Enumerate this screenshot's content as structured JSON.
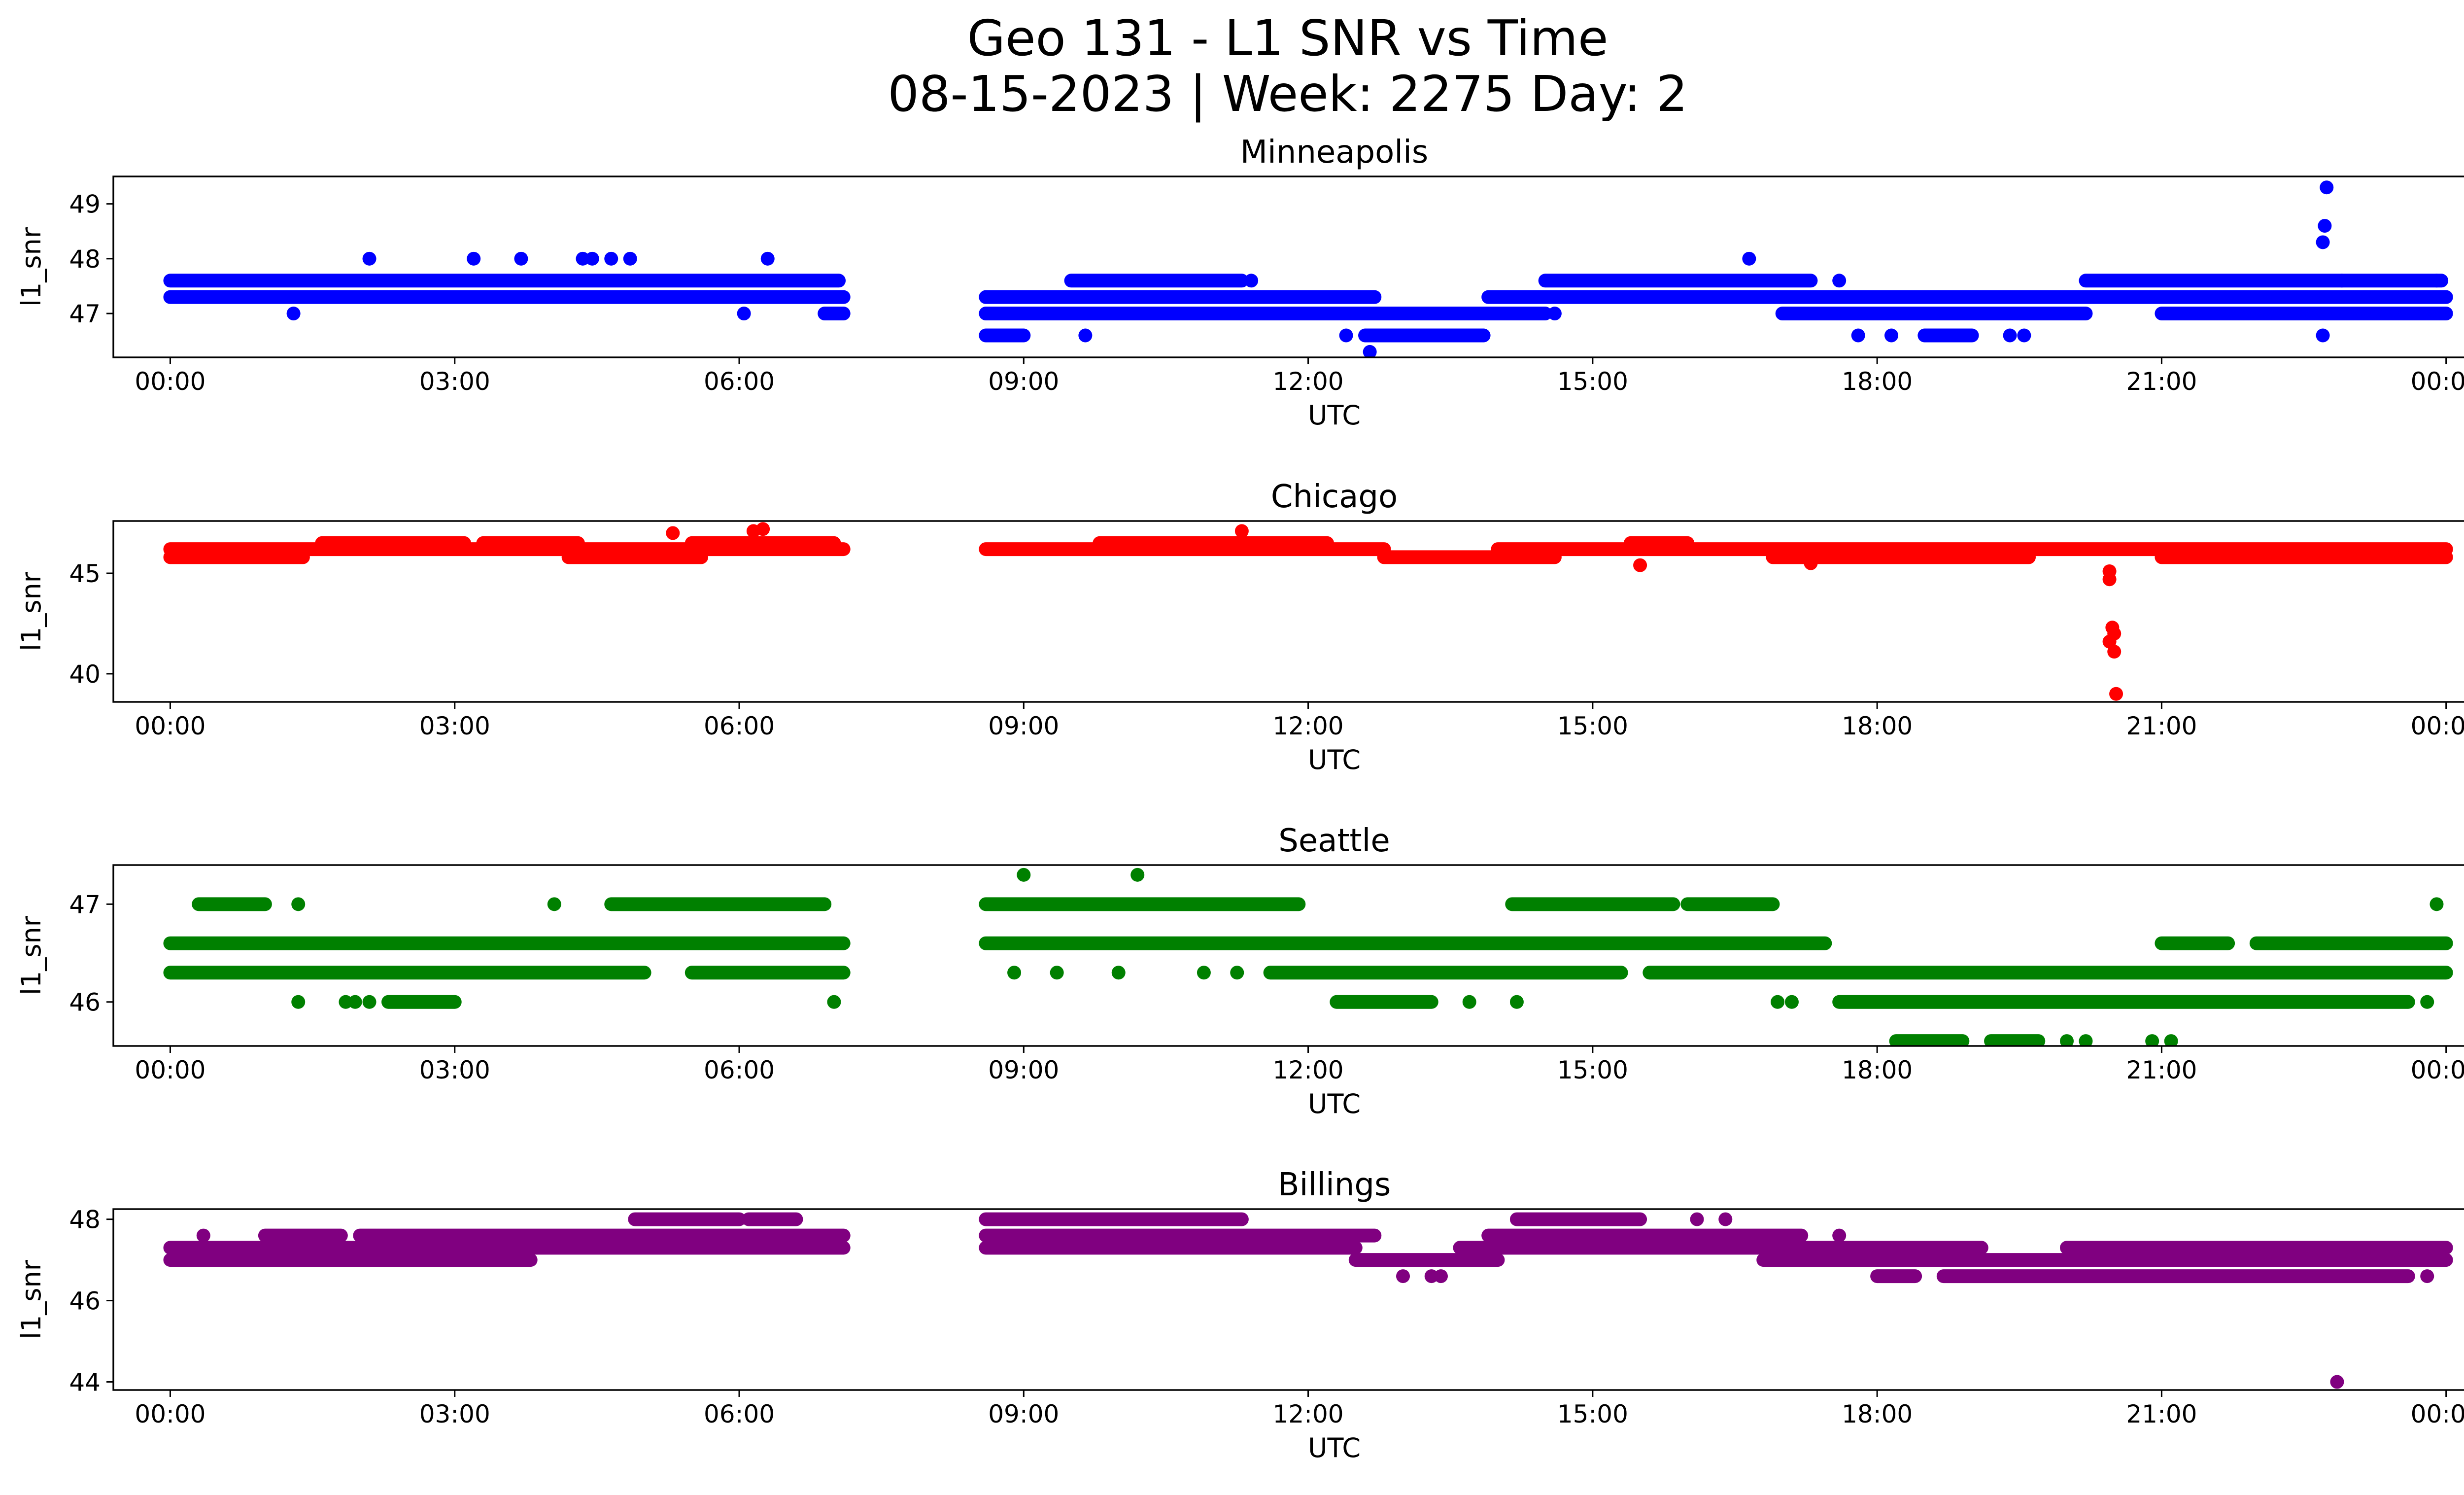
{
  "figure": {
    "title_line1": "Geo 131 - L1 SNR vs Time",
    "title_line2": "08-15-2023 | Week: 2275 Day: 2"
  },
  "chart_data": [
    {
      "type": "scatter",
      "title": "Minneapolis",
      "xlabel": "UTC",
      "ylabel": "l1_snr",
      "color": "#0000ff",
      "xlim_hours": [
        -0.6,
        25.15
      ],
      "ylim": [
        46.2,
        49.5
      ],
      "yticks": [
        47,
        48,
        49
      ],
      "xtick_labels": [
        "00:00",
        "03:00",
        "06:00",
        "09:00",
        "12:00",
        "15:00",
        "18:00",
        "21:00",
        "00:00"
      ],
      "bands": [
        {
          "y": 47.6,
          "ranges": [
            [
              0,
              7.05
            ],
            [
              9.5,
              11.3
            ],
            [
              14.5,
              17.3
            ],
            [
              20.2,
              23.95
            ]
          ]
        },
        {
          "y": 47.3,
          "ranges": [
            [
              0,
              7.1
            ],
            [
              8.6,
              12.7
            ],
            [
              13.9,
              24.0
            ]
          ]
        },
        {
          "y": 47.0,
          "ranges": [
            [
              6.9,
              7.1
            ],
            [
              8.6,
              14.5
            ],
            [
              17.0,
              20.2
            ],
            [
              21.0,
              24.0
            ]
          ]
        },
        {
          "y": 46.6,
          "ranges": [
            [
              8.6,
              9.0
            ],
            [
              12.6,
              13.85
            ],
            [
              18.5,
              19.0
            ]
          ]
        }
      ],
      "points": [
        [
          1.3,
          47.0
        ],
        [
          2.1,
          48.0
        ],
        [
          3.2,
          48.0
        ],
        [
          3.7,
          48.0
        ],
        [
          4.35,
          48.0
        ],
        [
          4.45,
          48.0
        ],
        [
          4.65,
          48.0
        ],
        [
          4.85,
          48.0
        ],
        [
          6.05,
          47.0
        ],
        [
          6.3,
          48.0
        ],
        [
          9.65,
          46.6
        ],
        [
          11.4,
          47.6
        ],
        [
          12.4,
          46.6
        ],
        [
          12.65,
          46.3
        ],
        [
          14.6,
          47.0
        ],
        [
          16.65,
          48.0
        ],
        [
          17.6,
          47.6
        ],
        [
          17.8,
          46.6
        ],
        [
          18.15,
          46.6
        ],
        [
          19.4,
          46.6
        ],
        [
          19.55,
          46.6
        ],
        [
          22.7,
          48.3
        ],
        [
          22.72,
          48.6
        ],
        [
          22.74,
          49.3
        ],
        [
          22.7,
          46.6
        ],
        [
          22.9,
          47.6
        ],
        [
          23.9,
          47.6
        ]
      ]
    },
    {
      "type": "scatter",
      "title": "Chicago",
      "xlabel": "UTC",
      "ylabel": "l1_snr",
      "color": "#ff0000",
      "xlim_hours": [
        -0.6,
        25.15
      ],
      "ylim": [
        38.6,
        47.6
      ],
      "yticks": [
        40,
        45
      ],
      "xtick_labels": [
        "00:00",
        "03:00",
        "06:00",
        "09:00",
        "12:00",
        "15:00",
        "18:00",
        "21:00",
        "00:00"
      ],
      "bands": [
        {
          "y": 46.5,
          "ranges": [
            [
              1.6,
              3.1
            ],
            [
              3.3,
              4.3
            ],
            [
              5.5,
              7.0
            ],
            [
              9.8,
              12.2
            ],
            [
              15.4,
              16.0
            ]
          ]
        },
        {
          "y": 46.2,
          "ranges": [
            [
              0,
              7.1
            ],
            [
              8.6,
              12.8
            ],
            [
              14.0,
              24.0
            ]
          ]
        },
        {
          "y": 45.8,
          "ranges": [
            [
              0,
              1.4
            ],
            [
              4.2,
              5.6
            ],
            [
              12.8,
              14.6
            ],
            [
              16.9,
              19.6
            ],
            [
              21.0,
              24.0
            ]
          ]
        }
      ],
      "points": [
        [
          5.3,
          47.0
        ],
        [
          6.15,
          47.1
        ],
        [
          6.25,
          47.2
        ],
        [
          11.3,
          47.1
        ],
        [
          15.5,
          45.4
        ],
        [
          17.3,
          45.5
        ],
        [
          20.45,
          45.1
        ],
        [
          20.45,
          44.7
        ],
        [
          20.48,
          42.3
        ],
        [
          20.5,
          42.0
        ],
        [
          20.45,
          41.6
        ],
        [
          20.5,
          41.1
        ],
        [
          20.52,
          39.0
        ]
      ]
    },
    {
      "type": "scatter",
      "title": "Seattle",
      "xlabel": "UTC",
      "ylabel": "l1_snr",
      "color": "#008000",
      "xlim_hours": [
        -0.6,
        25.15
      ],
      "ylim": [
        45.55,
        47.4
      ],
      "yticks": [
        46,
        47
      ],
      "xtick_labels": [
        "00:00",
        "03:00",
        "06:00",
        "09:00",
        "12:00",
        "15:00",
        "18:00",
        "21:00",
        "00:00"
      ],
      "bands": [
        {
          "y": 47.0,
          "ranges": [
            [
              0.3,
              1.0
            ],
            [
              4.65,
              6.9
            ],
            [
              8.6,
              11.9
            ],
            [
              14.15,
              15.85
            ],
            [
              16.0,
              16.9
            ]
          ]
        },
        {
          "y": 46.6,
          "ranges": [
            [
              0,
              7.1
            ],
            [
              8.6,
              17.45
            ],
            [
              21.0,
              21.7
            ],
            [
              22.0,
              24.0
            ]
          ]
        },
        {
          "y": 46.3,
          "ranges": [
            [
              0,
              5.0
            ],
            [
              5.5,
              7.1
            ],
            [
              11.6,
              15.3
            ],
            [
              15.6,
              24.0
            ]
          ]
        },
        {
          "y": 46.0,
          "ranges": [
            [
              2.3,
              3.0
            ],
            [
              12.3,
              13.3
            ],
            [
              17.6,
              23.6
            ]
          ]
        },
        {
          "y": 45.6,
          "ranges": [
            [
              18.2,
              18.9
            ],
            [
              19.2,
              19.7
            ]
          ]
        }
      ],
      "points": [
        [
          1.35,
          47.0
        ],
        [
          4.05,
          47.0
        ],
        [
          1.35,
          46.0
        ],
        [
          1.85,
          46.0
        ],
        [
          1.95,
          46.0
        ],
        [
          2.1,
          46.0
        ],
        [
          7.0,
          46.0
        ],
        [
          9.0,
          47.3
        ],
        [
          10.2,
          47.3
        ],
        [
          8.9,
          46.3
        ],
        [
          9.35,
          46.3
        ],
        [
          10.0,
          46.3
        ],
        [
          10.9,
          46.3
        ],
        [
          11.25,
          46.3
        ],
        [
          13.7,
          46.0
        ],
        [
          14.2,
          46.0
        ],
        [
          16.95,
          46.0
        ],
        [
          17.1,
          46.0
        ],
        [
          20.0,
          45.6
        ],
        [
          20.2,
          45.6
        ],
        [
          20.9,
          45.6
        ],
        [
          21.1,
          45.6
        ],
        [
          23.9,
          47.0
        ],
        [
          23.8,
          46.0
        ]
      ]
    },
    {
      "type": "scatter",
      "title": "Billings",
      "xlabel": "UTC",
      "ylabel": "l1_snr",
      "color": "#800080",
      "xlim_hours": [
        -0.6,
        25.15
      ],
      "ylim": [
        43.8,
        48.25
      ],
      "yticks": [
        44,
        46,
        48
      ],
      "xtick_labels": [
        "00:00",
        "03:00",
        "06:00",
        "09:00",
        "12:00",
        "15:00",
        "18:00",
        "21:00",
        "00:00"
      ],
      "bands": [
        {
          "y": 48.0,
          "ranges": [
            [
              4.9,
              6.0
            ],
            [
              6.1,
              6.6
            ],
            [
              8.6,
              11.3
            ],
            [
              14.2,
              15.5
            ]
          ]
        },
        {
          "y": 47.6,
          "ranges": [
            [
              1.0,
              1.8
            ],
            [
              2.0,
              7.1
            ],
            [
              8.6,
              12.7
            ],
            [
              13.9,
              17.2
            ]
          ]
        },
        {
          "y": 47.3,
          "ranges": [
            [
              0,
              7.1
            ],
            [
              8.6,
              12.5
            ],
            [
              13.6,
              19.1
            ],
            [
              20.0,
              24.0
            ]
          ]
        },
        {
          "y": 47.0,
          "ranges": [
            [
              0,
              3.8
            ],
            [
              12.5,
              14.0
            ],
            [
              16.8,
              24.0
            ]
          ]
        },
        {
          "y": 46.6,
          "ranges": [
            [
              18.0,
              18.4
            ],
            [
              18.7,
              23.6
            ]
          ]
        }
      ],
      "points": [
        [
          0.35,
          47.6
        ],
        [
          2.85,
          47.0
        ],
        [
          13.0,
          46.6
        ],
        [
          13.3,
          46.6
        ],
        [
          13.4,
          46.6
        ],
        [
          16.1,
          48.0
        ],
        [
          16.4,
          48.0
        ],
        [
          17.6,
          47.6
        ],
        [
          23.8,
          46.6
        ],
        [
          22.85,
          44.0
        ]
      ]
    }
  ]
}
